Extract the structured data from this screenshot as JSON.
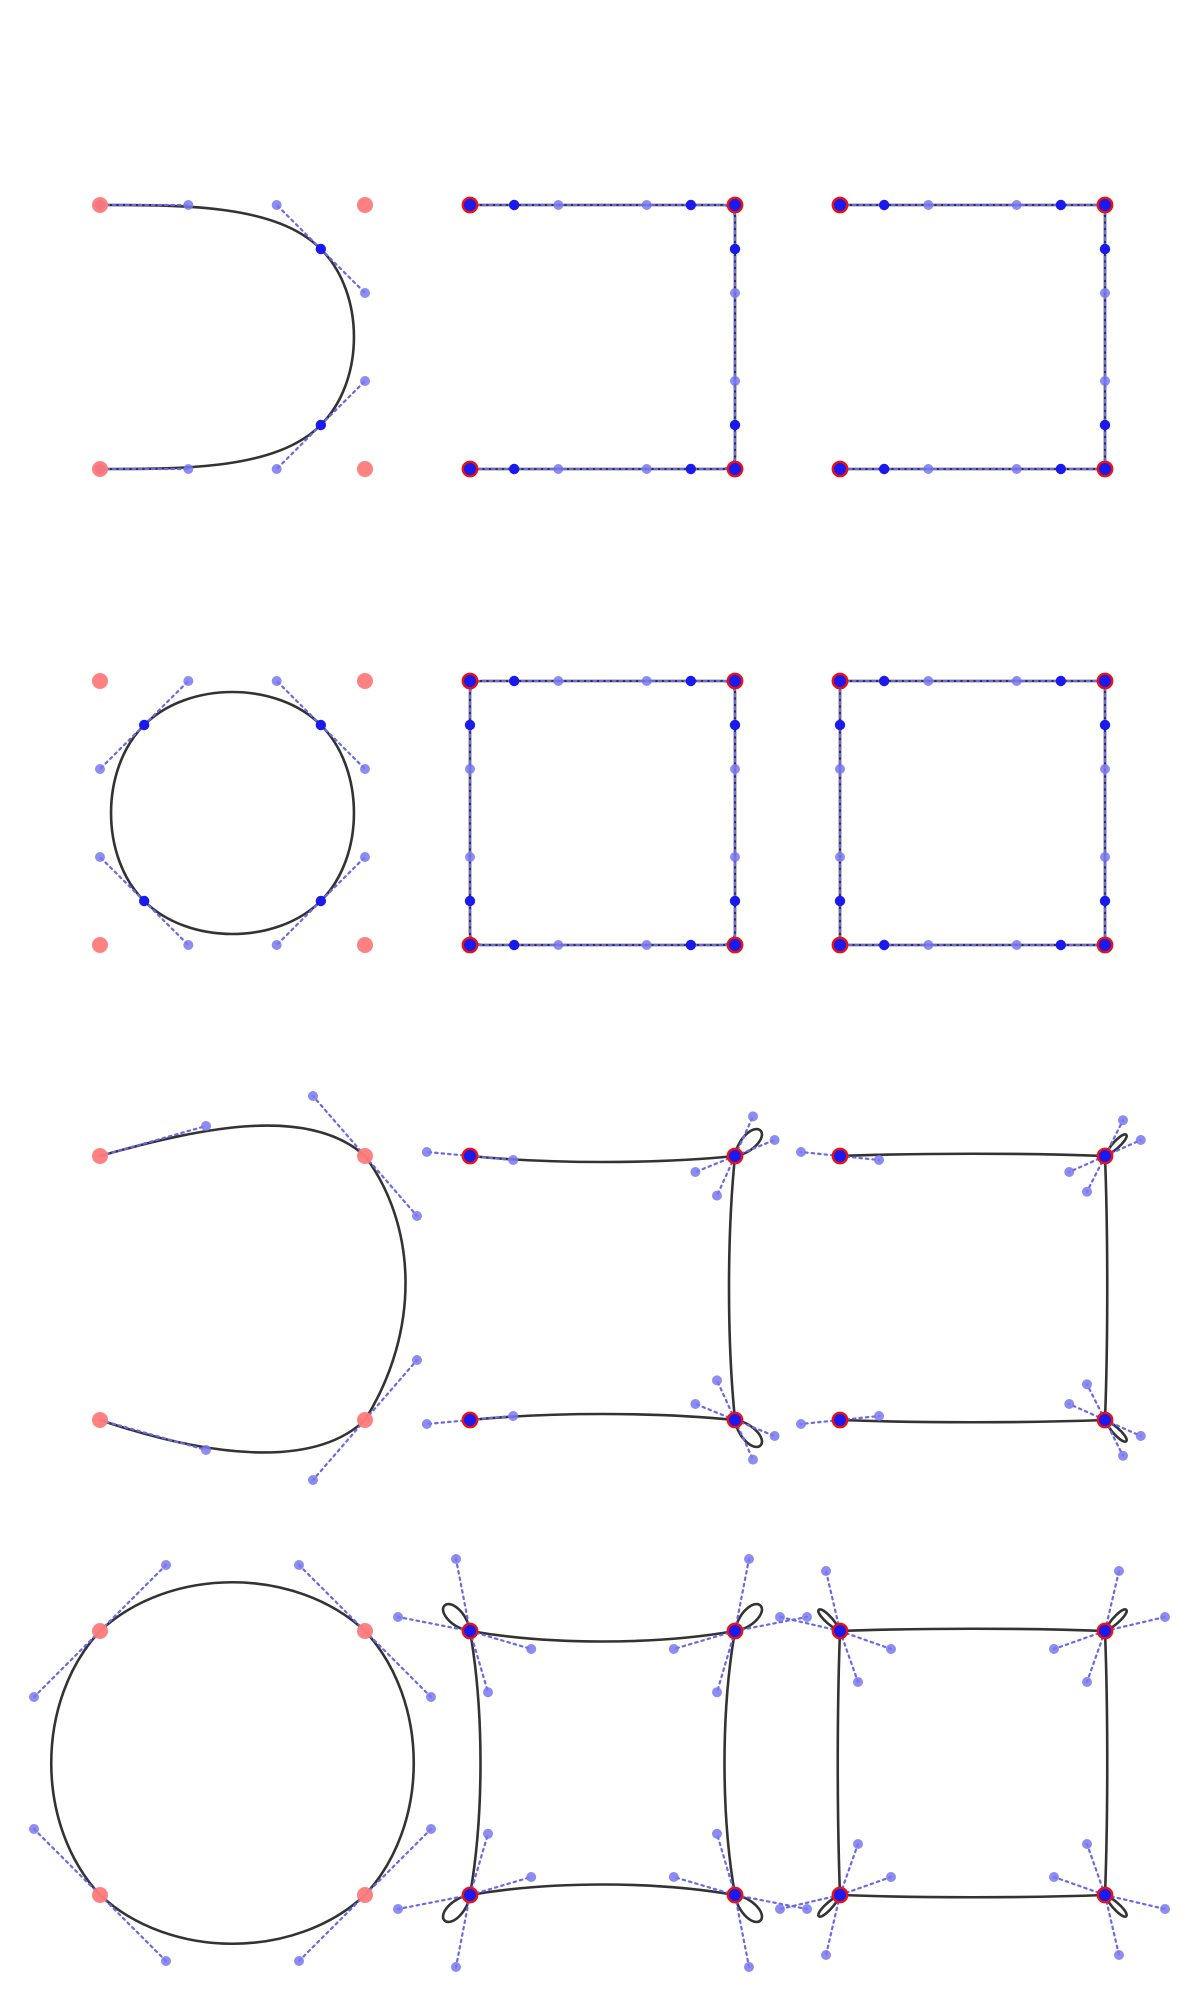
{
  "colors": {
    "curve": "#333333",
    "handle_line": "#6a6ae8",
    "handle_dot": "#7878f0",
    "on_curve_point": "#1a1aee",
    "corner_red": "#ff7a7a",
    "corner_ring": "#ee1111"
  },
  "panels": [
    {
      "row": 0,
      "col": 0,
      "shape": "U arc (open, 3 segments)",
      "corners_visible": true,
      "snapped": false
    },
    {
      "row": 0,
      "col": 1,
      "shape": "U with rounded corners",
      "corners_visible": true,
      "snapped": true
    },
    {
      "row": 0,
      "col": 2,
      "shape": "U with sharp corners",
      "corners_visible": true,
      "snapped": true
    },
    {
      "row": 1,
      "col": 0,
      "shape": "closed circle (4 segments)",
      "corners_visible": true,
      "snapped": false
    },
    {
      "row": 1,
      "col": 1,
      "shape": "rounded square",
      "corners_visible": true,
      "snapped": true
    },
    {
      "row": 1,
      "col": 2,
      "shape": "sharp square",
      "corners_visible": true,
      "snapped": true
    },
    {
      "row": 2,
      "col": 0,
      "shape": "open curve through 4 corners",
      "corners_visible": true,
      "snapped": false
    },
    {
      "row": 2,
      "col": 1,
      "shape": "open curve with corner loops",
      "corners_visible": true,
      "snapped": false
    },
    {
      "row": 2,
      "col": 2,
      "shape": "open curve with small loops",
      "corners_visible": true,
      "snapped": false
    },
    {
      "row": 3,
      "col": 0,
      "shape": "closed curve through 4 corners",
      "corners_visible": true,
      "snapped": false
    },
    {
      "row": 3,
      "col": 1,
      "shape": "closed curve with corner loops",
      "corners_visible": true,
      "snapped": false
    },
    {
      "row": 3,
      "col": 2,
      "shape": "closed curve with small loops",
      "corners_visible": true,
      "snapped": false
    }
  ]
}
